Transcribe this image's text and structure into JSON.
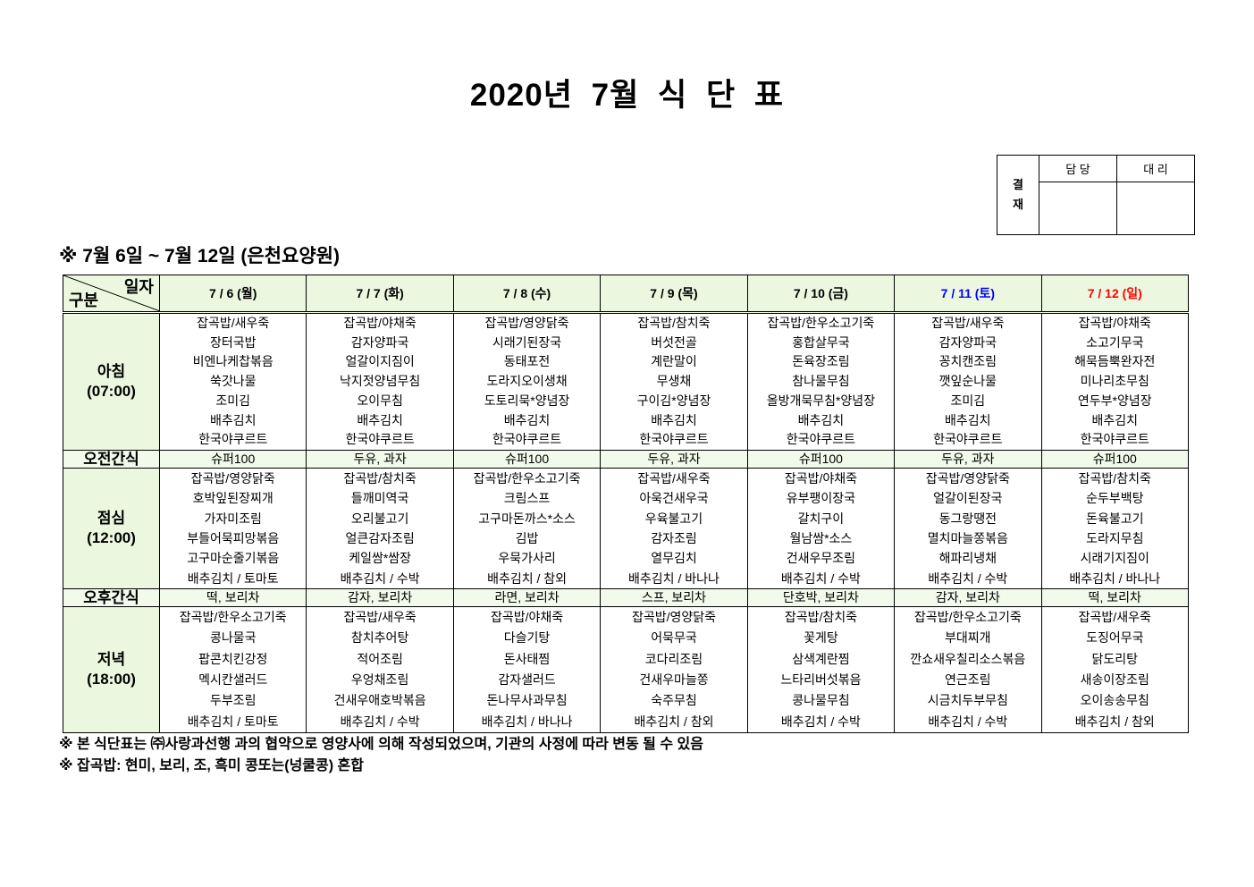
{
  "title": "2020년 7월 식 단 표",
  "approval": {
    "label": "결\n재",
    "label_top": "결",
    "label_bottom": "재",
    "col1": "담 당",
    "col2": "대 리"
  },
  "subtitle": "※ 7월 6일 ~ 7월 12일 (은천요양원)",
  "corner": {
    "top": "일자",
    "bottom": "구분"
  },
  "days": [
    {
      "label": "7 / 6 (월)",
      "color": "#000000"
    },
    {
      "label": "7 / 7 (화)",
      "color": "#000000"
    },
    {
      "label": "7 / 8 (수)",
      "color": "#000000"
    },
    {
      "label": "7 / 9 (목)",
      "color": "#000000"
    },
    {
      "label": "7 / 10 (금)",
      "color": "#000000"
    },
    {
      "label": "7 / 11 (토)",
      "color": "#0000ff"
    },
    {
      "label": "7 / 12 (일)",
      "color": "#ff0000"
    }
  ],
  "meals": [
    {
      "label": "아침",
      "time": "(07:00)",
      "type": "meal",
      "cells": [
        [
          "잡곡밥/새우죽",
          "장터국밥",
          "비엔나케찹볶음",
          "쑥갓나물",
          "조미김",
          "배추김치",
          "한국야쿠르트"
        ],
        [
          "잡곡밥/야채죽",
          "감자양파국",
          "얼갈이지짐이",
          "낙지젓양념무침",
          "오이무침",
          "배추김치",
          "한국야쿠르트"
        ],
        [
          "잡곡밥/영양닭죽",
          "시래기된장국",
          "동태포전",
          "도라지오이생채",
          "도토리묵*양념장",
          "배추김치",
          "한국야쿠르트"
        ],
        [
          "잡곡밥/참치죽",
          "버섯전골",
          "계란말이",
          "무생채",
          "구이김*양념장",
          "배추김치",
          "한국야쿠르트"
        ],
        [
          "잡곡밥/한우소고기죽",
          "홍합살무국",
          "돈육장조림",
          "참나물무침",
          "올방개묵무침*양념장",
          "배추김치",
          "한국야쿠르트"
        ],
        [
          "잡곡밥/새우죽",
          "감자양파국",
          "꽁치캔조림",
          "깻잎순나물",
          "조미김",
          "배추김치",
          "한국야쿠르트"
        ],
        [
          "잡곡밥/야채죽",
          "소고기무국",
          "해묵듬뿍완자전",
          "미나리초무침",
          "연두부*양념장",
          "배추김치",
          "한국야쿠르트"
        ]
      ]
    },
    {
      "label": "오전간식",
      "type": "snack",
      "cells": [
        "슈퍼100",
        "두유, 과자",
        "슈퍼100",
        "두유, 과자",
        "슈퍼100",
        "두유, 과자",
        "슈퍼100"
      ]
    },
    {
      "label": "점심",
      "time": "(12:00)",
      "type": "meal",
      "cells": [
        [
          "잡곡밥/영양닭죽",
          "호박잎된장찌개",
          "가자미조림",
          "부들어묵피망볶음",
          "고구마순줄기볶음",
          "배추김치 / 토마토"
        ],
        [
          "잡곡밥/참치죽",
          "들깨미역국",
          "오리불고기",
          "얼큰감자조림",
          "케일쌈*쌈장",
          "배추김치 / 수박"
        ],
        [
          "잡곡밥/한우소고기죽",
          "크림스프",
          "고구마돈까스*소스",
          "김밥",
          "우묵가사리",
          "배추김치 / 참외"
        ],
        [
          "잡곡밥/새우죽",
          "아욱건새우국",
          "우육불고기",
          "감자조림",
          "열무김치",
          "배추김치 / 바나나"
        ],
        [
          "잡곡밥/야채죽",
          "유부팽이장국",
          "갈치구이",
          "월남쌈*소스",
          "건새우무조림",
          "배추김치 / 수박"
        ],
        [
          "잡곡밥/영양닭죽",
          "얼갈이된장국",
          "동그랑땡전",
          "멸치마늘쫑볶음",
          "해파리냉채",
          "배추김치 / 수박"
        ],
        [
          "잡곡밥/참치죽",
          "순두부백탕",
          "돈육불고기",
          "도라지무침",
          "시래기지짐이",
          "배추김치 / 바나나"
        ]
      ]
    },
    {
      "label": "오후간식",
      "type": "snack",
      "cells": [
        "떡, 보리차",
        "감자, 보리차",
        "라면, 보리차",
        "스프, 보리차",
        "단호박, 보리차",
        "감자, 보리차",
        "떡, 보리차"
      ]
    },
    {
      "label": "저녁",
      "time": "(18:00)",
      "type": "meal",
      "cells": [
        [
          "잡곡밥/한우소고기죽",
          "콩나물국",
          "팝콘치킨강정",
          "멕시칸샐러드",
          "두부조림",
          "배추김치 / 토마토"
        ],
        [
          "잡곡밥/새우죽",
          "참치추어탕",
          "적어조림",
          "우엉채조림",
          "건새우애호박볶음",
          "배추김치 / 수박"
        ],
        [
          "잡곡밥/야채죽",
          "다슬기탕",
          "돈사태찜",
          "감자샐러드",
          "돈나무사과무침",
          "배추김치 / 바나나"
        ],
        [
          "잡곡밥/영양닭죽",
          "어묵무국",
          "코다리조림",
          "건새우마늘쫑",
          "숙주무침",
          "배추김치 / 참외"
        ],
        [
          "잡곡밥/참치죽",
          "꽃게탕",
          "삼색계란찜",
          "느타리버섯볶음",
          "콩나물무침",
          "배추김치 / 수박"
        ],
        [
          "잡곡밥/한우소고기죽",
          "부대찌개",
          "깐쇼새우칠리소스볶음",
          "연근조림",
          "시금치두부무침",
          "배추김치 / 수박"
        ],
        [
          "잡곡밥/새우죽",
          "도징어무국",
          "닭도리탕",
          "새송이장조림",
          "오이송송무침",
          "배추김치 / 참외"
        ]
      ]
    }
  ],
  "notes": [
    "※ 본 식단표는 ㈜사랑과선행 과의 협약으로 영양사에 의해 작성되었으며, 기관의 사정에 따라 변동 될 수 있음",
    "※ 잡곡밥: 현미, 보리, 조, 흑미 콩또는(넝쿨콩) 혼합"
  ]
}
